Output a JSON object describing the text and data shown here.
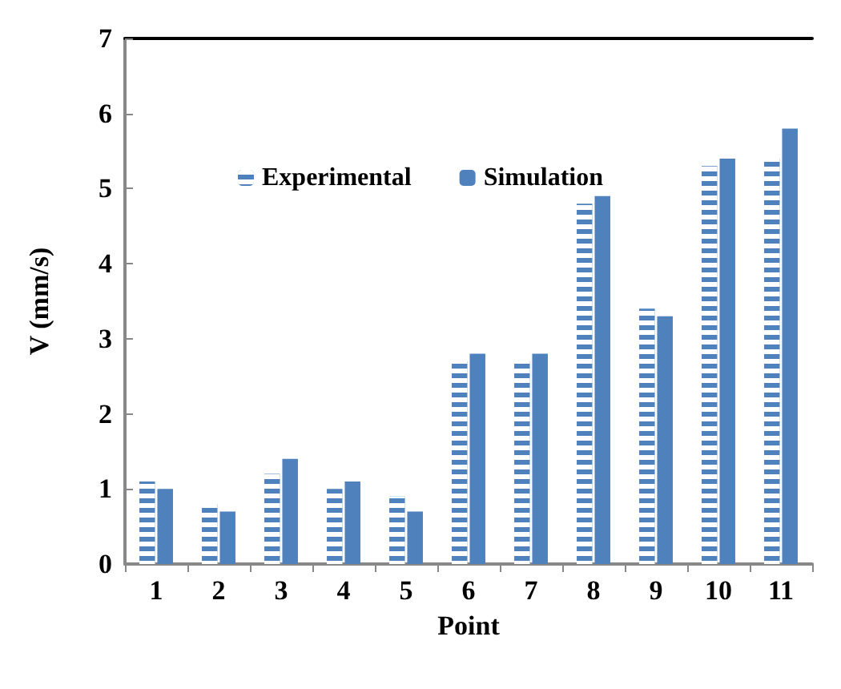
{
  "chart_data": {
    "type": "bar",
    "xlabel": "Point",
    "ylabel": "V (mm/s)",
    "categories": [
      "1",
      "2",
      "3",
      "4",
      "5",
      "6",
      "7",
      "8",
      "9",
      "10",
      "11"
    ],
    "series": [
      {
        "name": "Experimental",
        "color": "#4f81bd",
        "values": [
          1.1,
          0.8,
          1.2,
          1.0,
          0.9,
          2.7,
          2.7,
          4.8,
          3.4,
          5.3,
          5.4
        ]
      },
      {
        "name": "Simulation",
        "color": "#4f81bd",
        "values": [
          1.0,
          0.7,
          1.4,
          1.1,
          0.7,
          2.8,
          2.8,
          4.9,
          3.3,
          5.4,
          5.8
        ]
      }
    ],
    "ylim": [
      0,
      7
    ],
    "yticks": [
      0,
      1,
      2,
      3,
      4,
      5,
      6,
      7
    ],
    "grid": false,
    "legend": "top"
  }
}
